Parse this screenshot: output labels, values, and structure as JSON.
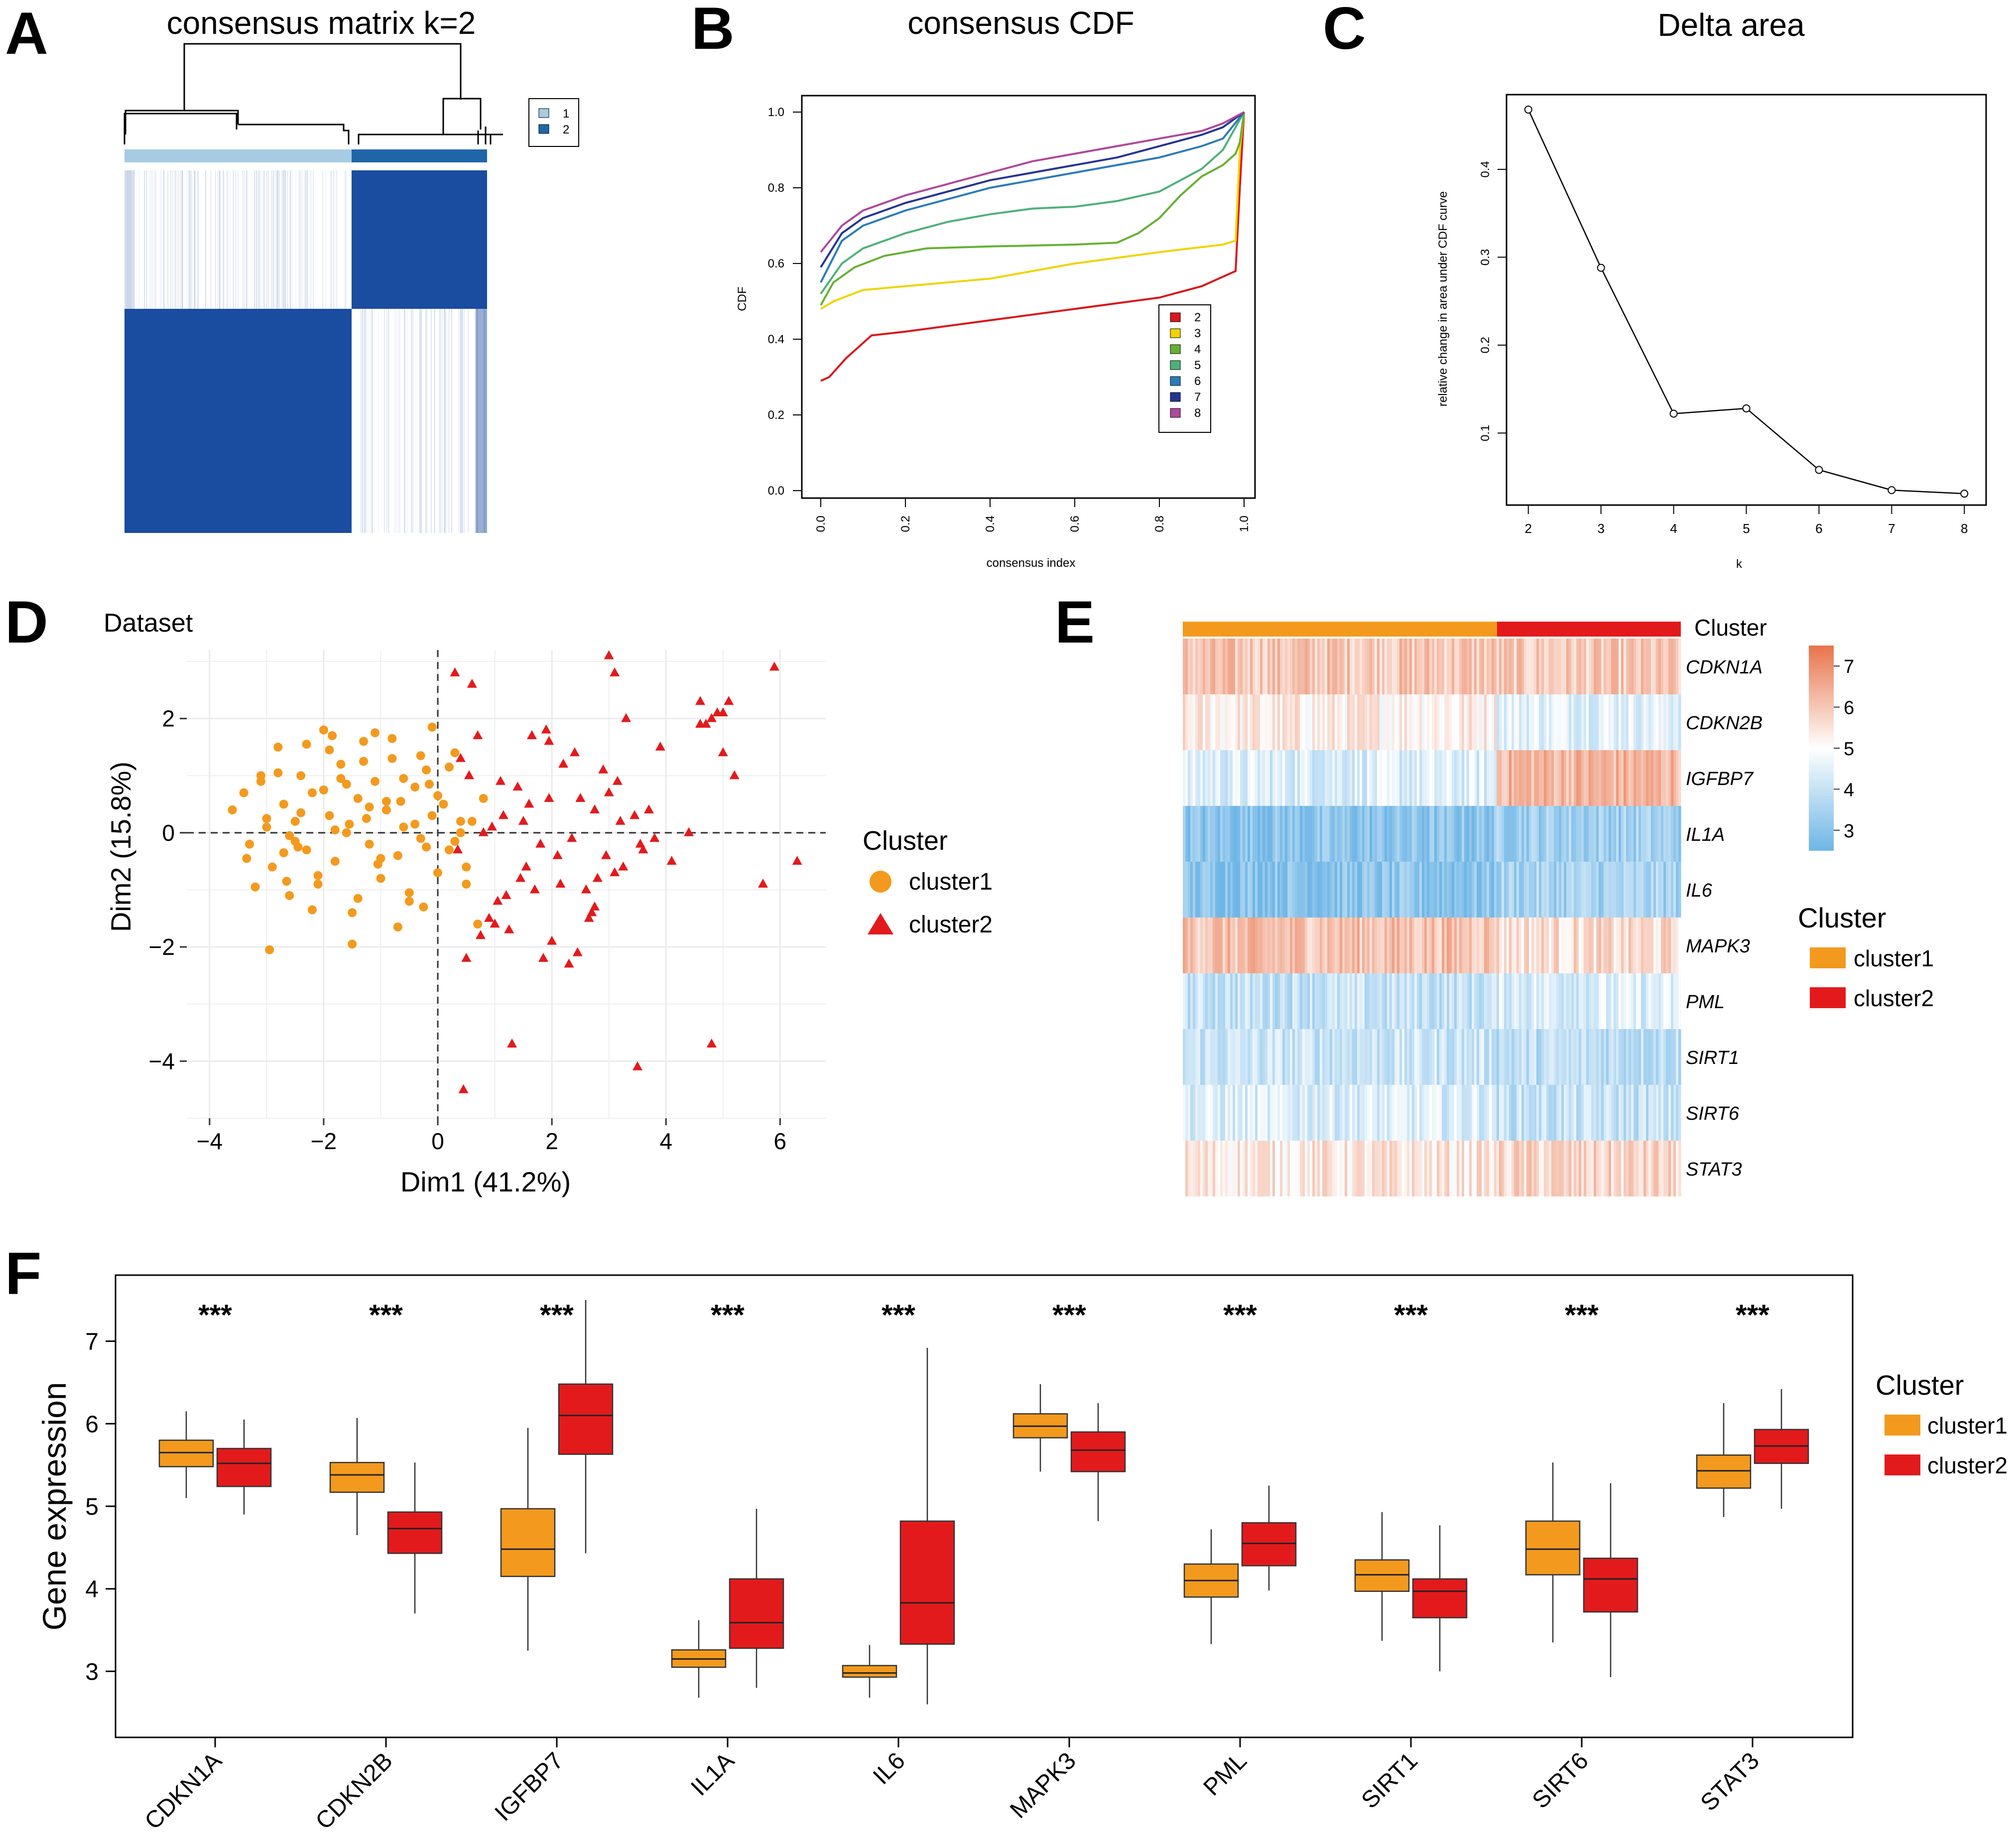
{
  "panel_labels": [
    "A",
    "B",
    "C",
    "D",
    "E",
    "F"
  ],
  "chart_data": [
    {
      "id": "A",
      "type": "heatmap",
      "title": "consensus matrix k=2",
      "legend": [
        "1",
        "2"
      ],
      "colors": {
        "c1": "#a6cbe3",
        "c2": "#1f66a9",
        "fill": "#1a4ca0"
      }
    },
    {
      "id": "B",
      "type": "line",
      "title": "consensus CDF",
      "xlabel": "consensus index",
      "ylabel": "CDF",
      "xlim": [
        0,
        1
      ],
      "ylim": [
        0,
        1
      ],
      "xticks": [
        "0.0",
        "0.2",
        "0.4",
        "0.6",
        "0.8",
        "1.0"
      ],
      "yticks": [
        "0.0",
        "0.2",
        "0.4",
        "0.6",
        "0.8",
        "1.0"
      ],
      "series": [
        {
          "name": "2",
          "color": "#d7191c",
          "x": [
            0,
            0.02,
            0.06,
            0.12,
            0.2,
            0.4,
            0.6,
            0.8,
            0.9,
            0.96,
            0.98,
            0.99,
            1.0
          ],
          "y": [
            0.29,
            0.3,
            0.35,
            0.41,
            0.42,
            0.45,
            0.48,
            0.51,
            0.54,
            0.57,
            0.58,
            0.8,
            1.0
          ]
        },
        {
          "name": "3",
          "color": "#f0d400",
          "x": [
            0,
            0.03,
            0.1,
            0.2,
            0.4,
            0.6,
            0.8,
            0.95,
            0.98,
            0.99,
            1.0
          ],
          "y": [
            0.48,
            0.5,
            0.53,
            0.54,
            0.56,
            0.6,
            0.63,
            0.65,
            0.66,
            0.9,
            1.0
          ]
        },
        {
          "name": "4",
          "color": "#66b032",
          "x": [
            0,
            0.03,
            0.08,
            0.15,
            0.25,
            0.4,
            0.6,
            0.7,
            0.75,
            0.8,
            0.85,
            0.9,
            0.95,
            0.98,
            0.99,
            1.0
          ],
          "y": [
            0.49,
            0.55,
            0.59,
            0.62,
            0.64,
            0.645,
            0.65,
            0.655,
            0.68,
            0.72,
            0.78,
            0.83,
            0.86,
            0.89,
            0.92,
            1.0
          ]
        },
        {
          "name": "5",
          "color": "#4fb07a",
          "x": [
            0,
            0.05,
            0.1,
            0.2,
            0.3,
            0.4,
            0.5,
            0.6,
            0.7,
            0.8,
            0.9,
            0.95,
            1.0
          ],
          "y": [
            0.52,
            0.6,
            0.64,
            0.68,
            0.71,
            0.73,
            0.745,
            0.75,
            0.765,
            0.79,
            0.85,
            0.9,
            1.0
          ]
        },
        {
          "name": "6",
          "color": "#2b7bb9",
          "x": [
            0,
            0.05,
            0.1,
            0.2,
            0.3,
            0.4,
            0.5,
            0.6,
            0.7,
            0.8,
            0.9,
            0.95,
            1.0
          ],
          "y": [
            0.55,
            0.66,
            0.7,
            0.74,
            0.77,
            0.8,
            0.82,
            0.84,
            0.86,
            0.88,
            0.91,
            0.93,
            1.0
          ]
        },
        {
          "name": "7",
          "color": "#253494",
          "x": [
            0,
            0.05,
            0.1,
            0.2,
            0.3,
            0.4,
            0.5,
            0.6,
            0.7,
            0.8,
            0.9,
            0.95,
            1.0
          ],
          "y": [
            0.59,
            0.68,
            0.72,
            0.76,
            0.79,
            0.82,
            0.84,
            0.86,
            0.88,
            0.91,
            0.94,
            0.96,
            1.0
          ]
        },
        {
          "name": "8",
          "color": "#b0489b",
          "x": [
            0,
            0.05,
            0.1,
            0.2,
            0.3,
            0.4,
            0.5,
            0.6,
            0.7,
            0.8,
            0.9,
            0.95,
            1.0
          ],
          "y": [
            0.63,
            0.7,
            0.74,
            0.78,
            0.81,
            0.84,
            0.87,
            0.89,
            0.91,
            0.93,
            0.95,
            0.97,
            1.0
          ]
        }
      ]
    },
    {
      "id": "C",
      "type": "line",
      "title": "Delta area",
      "xlabel": "k",
      "ylabel": "relative change in area under CDF curve",
      "xlim": [
        1.7,
        8.3
      ],
      "ylim": [
        0.018,
        0.485
      ],
      "x": [
        2,
        3,
        4,
        5,
        6,
        7,
        8
      ],
      "y": [
        0.468,
        0.288,
        0.122,
        0.128,
        0.058,
        0.035,
        0.031
      ],
      "xticks": [
        "2",
        "3",
        "4",
        "5",
        "6",
        "7",
        "8"
      ],
      "yticks": [
        "0.1",
        "0.2",
        "0.3",
        "0.4"
      ]
    },
    {
      "id": "D",
      "type": "scatter",
      "title": "Dataset",
      "xlabel": "Dim1 (41.2%)",
      "ylabel": "Dim2 (15.8%)",
      "xlim": [
        -4.4,
        6.8
      ],
      "ylim": [
        -5.0,
        3.2
      ],
      "xticks": [
        "−4",
        "−2",
        "0",
        "2",
        "4",
        "6"
      ],
      "yticks": [
        "−4",
        "−2",
        "0",
        "2"
      ],
      "legend_title": "Cluster",
      "series": [
        {
          "name": "cluster1",
          "color": "#f39a1e",
          "shape": "circle",
          "x": [
            -3.6,
            -3.3,
            -3.1,
            -3.0,
            -2.9,
            -2.8,
            -2.7,
            -2.6,
            -2.5,
            -2.4,
            -2.3,
            -2.2,
            -2.1,
            -2.0,
            -1.9,
            -1.8,
            -1.7,
            -1.6,
            -1.5,
            -1.4,
            -1.3,
            -1.2,
            -1.1,
            -1.0,
            -0.9,
            -0.8,
            -0.7,
            -0.6,
            -0.5,
            -0.4,
            -0.3,
            -0.2,
            -0.1,
            0.0,
            0.1,
            0.2,
            0.3,
            0.4,
            0.5,
            0.6,
            0.7,
            0.8,
            -2.95,
            -1.5,
            -0.7,
            -2.2,
            -3.2,
            -1.0,
            -0.2,
            0.3,
            -2.6,
            -1.8,
            -0.4,
            -3.0,
            -2.4,
            -1.2,
            -0.9,
            0.0,
            -2.0,
            -1.6,
            -0.6,
            -2.8,
            0.2,
            -1.3,
            -0.3,
            -1.9,
            -2.3,
            -0.8,
            -1.1,
            -0.5,
            -1.4,
            -2.7,
            -3.4,
            0.5,
            -2.1,
            -1.7,
            -0.1,
            -2.5,
            -3.1,
            -0.25,
            0.4,
            -1.05,
            -1.55,
            -2.45,
            -0.65,
            -1.85,
            -2.65,
            -3.35,
            -0.15,
            -1.25
          ],
          "y": [
            0.4,
            -0.2,
            0.9,
            0.1,
            -0.6,
            1.5,
            0.5,
            -1.1,
            0.2,
            1.0,
            -0.3,
            0.7,
            -0.9,
            1.8,
            0.3,
            -0.5,
            1.2,
            0.0,
            -1.4,
            0.6,
            1.6,
            -0.2,
            0.9,
            -0.8,
            0.4,
            1.3,
            -0.4,
            0.1,
            -1.2,
            0.8,
            -0.1,
            1.1,
            0.3,
            -0.7,
            0.5,
            -0.3,
            1.4,
            0.0,
            -0.9,
            0.2,
            -1.6,
            0.6,
            -2.05,
            -1.95,
            -1.65,
            -1.35,
            -0.95,
            -0.45,
            -0.25,
            -0.15,
            -0.05,
            0.05,
            0.15,
            0.25,
            0.35,
            0.45,
            0.55,
            0.65,
            0.75,
            0.85,
            0.95,
            1.05,
            1.15,
            1.25,
            1.35,
            1.45,
            1.55,
            1.65,
            1.75,
            -1.05,
            -1.15,
            -0.35,
            0.7,
            -0.6,
            -0.75,
            0.95,
            1.85,
            -0.15,
            1.0,
            -1.3,
            0.2,
            -0.55,
            0.15,
            -0.25,
            0.55,
            1.7,
            -0.85,
            -0.45,
            0.85,
            0.25
          ]
        },
        {
          "name": "cluster2",
          "color": "#e31a1c",
          "shape": "triangle",
          "x": [
            0.3,
            0.5,
            0.7,
            0.9,
            1.1,
            1.3,
            1.5,
            1.7,
            1.9,
            2.1,
            2.3,
            2.5,
            2.7,
            2.9,
            3.1,
            3.3,
            3.5,
            3.7,
            3.9,
            4.1,
            4.4,
            4.6,
            4.8,
            5.0,
            5.2,
            5.7,
            5.9,
            6.3,
            0.4,
            0.8,
            1.2,
            1.6,
            2.0,
            2.4,
            2.8,
            3.2,
            3.6,
            0.6,
            1.0,
            1.4,
            1.8,
            2.2,
            2.6,
            3.0,
            0.35,
            0.75,
            1.15,
            1.55,
            1.95,
            2.35,
            2.75,
            3.15,
            3.55,
            0.45,
            0.95,
            1.45,
            1.95,
            2.45,
            2.95,
            3.45,
            0.55,
            1.05,
            1.65,
            2.15,
            2.75,
            3.25,
            1.25,
            1.85,
            2.65,
            3.0,
            4.7,
            4.8,
            4.9,
            5.1,
            5.0,
            4.6,
            3.1,
            3.8
          ],
          "y": [
            2.8,
            -2.2,
            1.7,
            -1.5,
            0.9,
            -3.7,
            0.2,
            -1.0,
            1.8,
            -0.4,
            -2.3,
            0.6,
            -1.4,
            1.1,
            -0.7,
            2.0,
            -4.1,
            0.4,
            1.5,
            -0.5,
            0.0,
            1.9,
            -3.7,
            2.1,
            1.0,
            -0.9,
            2.9,
            -0.5,
            1.3,
            0.0,
            -1.1,
            0.5,
            -1.9,
            1.4,
            -0.8,
            0.2,
            -0.3,
            2.6,
            -1.6,
            0.8,
            -0.2,
            1.2,
            -1.0,
            0.7,
            -0.3,
            -1.8,
            0.3,
            -0.6,
            1.6,
            -0.1,
            -1.3,
            0.9,
            -0.2,
            -4.5,
            0.1,
            -0.8,
            0.6,
            -2.1,
            -0.4,
            0.3,
            1.0,
            -1.2,
            1.7,
            -0.9,
            0.4,
            -0.6,
            -1.7,
            -2.2,
            -1.5,
            3.1,
            1.9,
            2.0,
            2.1,
            2.3,
            1.4,
            2.3,
            2.8,
            -0.1
          ]
        }
      ]
    },
    {
      "id": "E",
      "type": "heatmap",
      "genes": [
        "CDKN1A",
        "CDKN2B",
        "IGFBP7",
        "IL1A",
        "IL6",
        "MAPK3",
        "PML",
        "SIRT1",
        "SIRT6",
        "STAT3"
      ],
      "annotation_title": "Cluster",
      "legend_title": "Cluster",
      "legend": [
        "cluster1",
        "cluster2"
      ],
      "scale_ticks": [
        "7",
        "6",
        "5",
        "4",
        "3"
      ],
      "scale_range": [
        2.5,
        7.5
      ],
      "cluster1_fraction": 0.63,
      "mean_cluster1": [
        6.0,
        5.3,
        4.4,
        3.0,
        3.0,
        6.1,
        4.0,
        4.1,
        4.4,
        5.4
      ],
      "mean_cluster2": [
        5.9,
        4.6,
        6.3,
        3.4,
        3.5,
        5.6,
        4.4,
        3.9,
        4.0,
        5.7
      ]
    },
    {
      "id": "F",
      "type": "box",
      "ylabel": "Gene expression",
      "ylim": [
        2.2,
        7.8
      ],
      "yticks": [
        "3",
        "4",
        "5",
        "6",
        "7"
      ],
      "categories": [
        "CDKN1A",
        "CDKN2B",
        "IGFBP7",
        "IL1A",
        "IL6",
        "MAPK3",
        "PML",
        "SIRT1",
        "SIRT6",
        "STAT3"
      ],
      "significance": [
        "***",
        "***",
        "***",
        "***",
        "***",
        "***",
        "***",
        "***",
        "***",
        "***"
      ],
      "legend_title": "Cluster",
      "series": [
        {
          "name": "cluster1",
          "color": "#f39a1e",
          "stats": [
            [
              5.1,
              5.48,
              5.65,
              5.8,
              6.15
            ],
            [
              4.65,
              5.17,
              5.38,
              5.53,
              6.07
            ],
            [
              3.25,
              4.15,
              4.48,
              4.97,
              5.95
            ],
            [
              2.68,
              3.05,
              3.15,
              3.26,
              3.62
            ],
            [
              2.68,
              2.93,
              2.98,
              3.07,
              3.32
            ],
            [
              5.42,
              5.83,
              5.97,
              6.12,
              6.48
            ],
            [
              3.33,
              3.9,
              4.1,
              4.3,
              4.72
            ],
            [
              3.37,
              3.97,
              4.17,
              4.35,
              4.93
            ],
            [
              3.35,
              4.17,
              4.48,
              4.82,
              5.53
            ],
            [
              4.87,
              5.22,
              5.43,
              5.62,
              6.25
            ]
          ]
        },
        {
          "name": "cluster2",
          "color": "#e31a1c",
          "stats": [
            [
              4.9,
              5.24,
              5.52,
              5.7,
              6.05
            ],
            [
              3.7,
              4.43,
              4.73,
              4.93,
              5.53
            ],
            [
              4.43,
              5.63,
              6.1,
              6.48,
              7.5
            ],
            [
              2.8,
              3.28,
              3.59,
              4.12,
              4.97
            ],
            [
              2.6,
              3.33,
              3.83,
              4.82,
              6.92
            ],
            [
              4.82,
              5.42,
              5.68,
              5.9,
              6.25
            ],
            [
              3.98,
              4.28,
              4.55,
              4.8,
              5.25
            ],
            [
              3.0,
              3.65,
              3.97,
              4.12,
              4.77
            ],
            [
              2.93,
              3.72,
              4.12,
              4.37,
              5.28
            ],
            [
              4.97,
              5.52,
              5.73,
              5.93,
              6.42
            ]
          ]
        }
      ]
    }
  ]
}
